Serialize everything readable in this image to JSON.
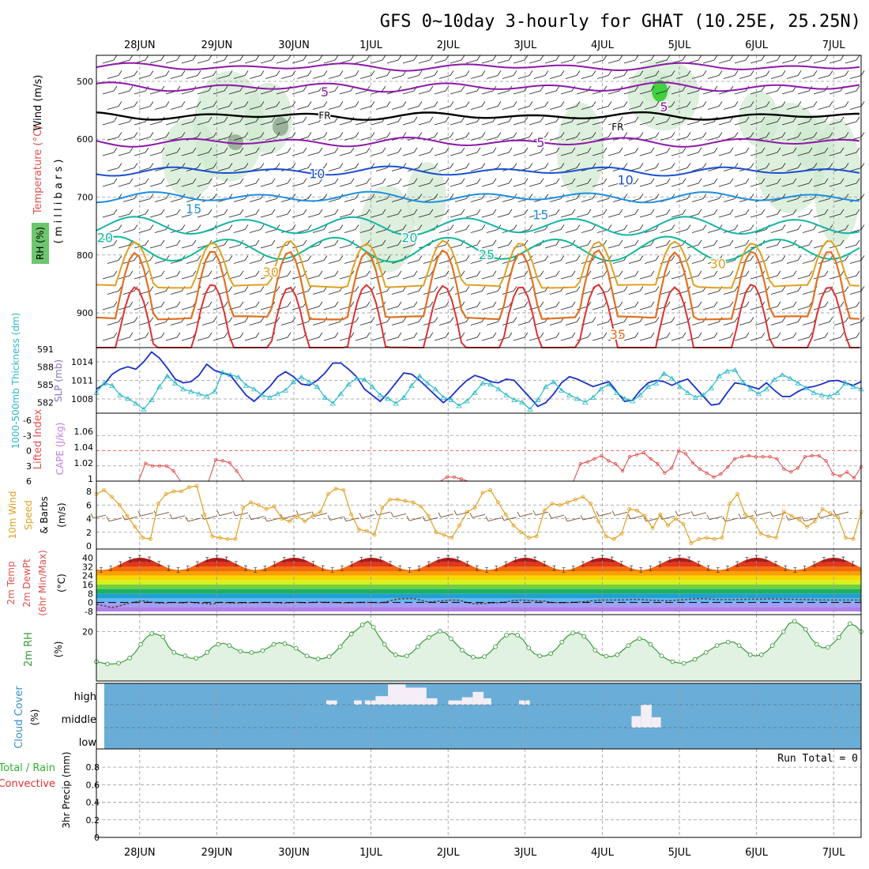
{
  "chart_data": {
    "type": "meteogram",
    "title": "GFS 0~10day 3-hourly for GHAT (10.25E, 25.25N)",
    "date_labels": [
      "28JUN",
      "29JUN",
      "30JUN",
      "1JUL",
      "2JUL",
      "3JUL",
      "4JUL",
      "5JUL",
      "6JUL",
      "7JUL"
    ],
    "upper": {
      "ylabel_unit": "( m i l l i b a r s )",
      "side_labels": {
        "wind": "Wind (m/s)",
        "temp": "Temperature (°C)",
        "rh": "RH (%)"
      },
      "yticks": [
        500,
        600,
        700,
        800,
        900
      ],
      "ylim": [
        960,
        455
      ],
      "isotherm_labels": [
        {
          "text": "5",
          "day": 2.9,
          "p": 526,
          "kind": "cold"
        },
        {
          "text": "5",
          "day": 7.3,
          "p": 552,
          "kind": "cold"
        },
        {
          "text": "5",
          "day": 5.7,
          "p": 613,
          "kind": "cold"
        },
        {
          "text": "FR",
          "day": 2.9,
          "p": 565,
          "kind": "fr"
        },
        {
          "text": "FR",
          "day": 6.7,
          "p": 585,
          "kind": "fr"
        },
        {
          "text": "10",
          "day": 2.8,
          "p": 667,
          "kind": "c10"
        },
        {
          "text": "10",
          "day": 6.8,
          "p": 678,
          "kind": "c10"
        },
        {
          "text": "15",
          "day": 1.2,
          "p": 728,
          "kind": "c15"
        },
        {
          "text": "15",
          "day": 5.7,
          "p": 738,
          "kind": "c15"
        },
        {
          "text": "20",
          "day": 0.05,
          "p": 778,
          "kind": "c20"
        },
        {
          "text": "20",
          "day": 4.0,
          "p": 778,
          "kind": "c20"
        },
        {
          "text": "25",
          "day": 5.0,
          "p": 807,
          "kind": "c25"
        },
        {
          "text": "30",
          "day": 2.2,
          "p": 837,
          "kind": "c30"
        },
        {
          "text": "30",
          "day": 8.0,
          "p": 823,
          "kind": "c30"
        },
        {
          "text": "35",
          "day": 6.7,
          "p": 945,
          "kind": "c35"
        }
      ]
    },
    "slp_panel": {
      "left_label": "1000-500mb Thickness (dm)",
      "right_label": "SLP (mb)",
      "left_ticks": [
        "591",
        "588",
        "585",
        "582"
      ],
      "right_ticks": [
        "1014",
        "1011",
        "1008"
      ],
      "slp": [
        1009.6,
        1010.4,
        1012.0,
        1012.8,
        1013.2,
        1012.8,
        1014.0,
        1015.6,
        1014.6,
        1013.0,
        1011.2,
        1010.6,
        1010.8,
        1011.8,
        1013.6,
        1012.6,
        1012.2,
        1011.8,
        1010.2,
        1008.6,
        1007.6,
        1008.8,
        1010.0,
        1011.6,
        1012.4,
        1011.6,
        1010.4,
        1010.2,
        1011.0,
        1012.2,
        1013.8,
        1013.8,
        1012.8,
        1011.6,
        1009.6,
        1008.6,
        1007.6,
        1009.0,
        1010.6,
        1012.2,
        1012.0,
        1011.0,
        1009.8,
        1008.6,
        1007.4,
        1008.4,
        1009.8,
        1011.0,
        1011.8,
        1011.4,
        1010.8,
        1010.6,
        1011.2,
        1011.0,
        1009.6,
        1008.2,
        1006.8,
        1007.4,
        1008.8,
        1010.6,
        1011.6,
        1011.2,
        1010.6,
        1010.0,
        1010.4,
        1010.8,
        1009.2,
        1007.6,
        1007.8,
        1009.4,
        1010.6,
        1011.0,
        1010.8,
        1010.2,
        1010.8,
        1011.2,
        1009.8,
        1008.4,
        1007.0,
        1007.2,
        1009.0,
        1010.6,
        1010.4,
        1010.0,
        1009.6,
        1010.6,
        1009.4,
        1008.4,
        1008.4,
        1009.2,
        1009.8,
        1010.0,
        1010.4,
        1010.9,
        1011.0,
        1010.6,
        1010.2,
        1010.8
      ],
      "thickness": [
        584.0,
        585.6,
        585.2,
        583.6,
        583.0,
        582.2,
        581.2,
        582.8,
        585.0,
        586.8,
        585.6,
        584.6,
        584.2,
        583.8,
        583.4,
        584.2,
        587.4,
        587.0,
        586.6,
        585.2,
        584.6,
        583.6,
        583.2,
        583.8,
        584.4,
        585.8,
        586.6,
        585.8,
        585.0,
        583.2,
        582.2,
        583.8,
        585.4,
        586.4,
        586.2,
        585.0,
        583.6,
        583.0,
        582.2,
        583.2,
        585.2,
        586.8,
        585.6,
        584.6,
        583.2,
        582.8,
        581.8,
        582.6,
        584.0,
        585.6,
        585.4,
        584.6,
        583.6,
        582.8,
        582.4,
        581.2,
        582.8,
        585.0,
        585.8,
        584.4,
        583.6,
        583.0,
        582.4,
        583.2,
        584.6,
        585.4,
        584.0,
        583.0,
        582.6,
        583.6,
        585.0,
        585.6,
        587.2,
        586.4,
        585.0,
        584.0,
        583.2,
        583.6,
        584.8,
        586.8,
        587.6,
        587.8,
        585.8,
        584.6,
        583.8,
        584.6,
        586.2,
        587.0,
        586.4,
        585.6,
        584.8,
        584.0,
        583.6,
        583.4,
        584.0,
        585.6,
        585.0,
        584.6
      ]
    },
    "cape_panel": {
      "left_label": "Lifted Index",
      "right_label": "CAPE (J/kg)",
      "left_ticks": [
        "-6",
        "-3",
        "0",
        "3",
        "6"
      ],
      "right_ticks": [
        "1.06",
        "1.04",
        "1.02",
        "1"
      ],
      "li": [
        6,
        6,
        6,
        6,
        6,
        6,
        6,
        2.5,
        3.0,
        3.0,
        3.0,
        4.0,
        6,
        6,
        6,
        6,
        6,
        1.8,
        2.0,
        2.4,
        4.0,
        6,
        6,
        6,
        6,
        6,
        6,
        6,
        6,
        6,
        6,
        6,
        6,
        6,
        6,
        6,
        6,
        6,
        6,
        6,
        6,
        6,
        6,
        6,
        6,
        6,
        6,
        6,
        6,
        6,
        5.2,
        5.2,
        5.6,
        6,
        6,
        6,
        6,
        6,
        6,
        6,
        6,
        6,
        6,
        6,
        6,
        6,
        6,
        6,
        6,
        2.6,
        2.2,
        1.6,
        1.0,
        2.0,
        2.6,
        4.0,
        1.2,
        0.8,
        0.4,
        1.6,
        2.6,
        4.4,
        3.4,
        0.0,
        0.6,
        2.4,
        3.6,
        4.4,
        5.2,
        4.6,
        3.2,
        1.6,
        1.2,
        1.0,
        1.2,
        1.2,
        1.2,
        1.6,
        3.6,
        4.2,
        3.4,
        1.2,
        1.0,
        1.0,
        2.0,
        4.6,
        5.0,
        4.2,
        5.4,
        3.2
      ]
    },
    "wind_panel": {
      "left_label": "10m Wind Speed & Barbs (m/s)",
      "yticks": [
        "0",
        "2",
        "4",
        "6",
        "8"
      ],
      "speed": [
        7.6,
        8.2,
        7.2,
        6.0,
        4.4,
        2.8,
        1.2,
        1.0,
        6.2,
        7.6,
        8.0,
        8.0,
        8.6,
        8.8,
        4.6,
        1.4,
        1.2,
        1.0,
        1.0,
        5.6,
        6.4,
        6.0,
        5.4,
        5.8,
        4.0,
        3.6,
        4.4,
        3.6,
        4.4,
        5.0,
        7.6,
        8.4,
        8.2,
        4.6,
        2.4,
        2.2,
        1.6,
        5.6,
        6.8,
        6.8,
        6.6,
        6.4,
        5.8,
        4.4,
        2.0,
        1.6,
        1.2,
        3.0,
        5.0,
        5.6,
        7.8,
        8.2,
        6.4,
        4.6,
        3.0,
        2.0,
        1.2,
        1.4,
        5.2,
        6.2,
        6.0,
        6.4,
        6.8,
        7.2,
        6.2,
        3.6,
        1.4,
        1.0,
        1.8,
        5.4,
        5.2,
        4.4,
        2.6,
        4.6,
        3.0,
        4.0,
        3.2,
        0.4,
        1.0,
        1.2,
        1.0,
        1.2,
        6.2,
        7.6,
        4.6,
        4.0,
        1.8,
        1.4,
        1.2,
        5.0,
        4.4,
        3.8,
        2.8,
        3.6,
        5.4,
        4.8,
        4.2,
        1.2,
        1.0,
        5.0
      ]
    },
    "temp_panel": {
      "left_label": "2m Temp 2m DewPt (6hr Min/Max) (°C)",
      "yticks": [
        "40",
        "32",
        "24",
        "16",
        "8",
        "0",
        "-8"
      ],
      "temp_min": 29,
      "temp_max": 40,
      "dewpt": [
        -1.5,
        -3.0,
        -4.5,
        -3.0,
        -1.0,
        0.5,
        1.5,
        0.5,
        -0.5,
        -0.5,
        0.2,
        -0.5,
        0.5,
        -0.5,
        -0.8,
        -1.5,
        0.2,
        -0.4,
        -0.5,
        -0.4,
        -0.3,
        -0.1,
        0.2,
        0.0,
        -0.5,
        -0.2,
        0.2,
        -0.3,
        0.2,
        0.4,
        0.2,
        0.0,
        -0.4,
        -0.4,
        0.2,
        0.1,
        0.0,
        -0.2,
        1.5,
        3.0,
        3.5,
        3.6,
        2.0,
        0.4,
        1.0,
        1.5,
        2.2,
        2.0,
        0.0,
        -1.2,
        -1.0,
        -0.6,
        -0.2,
        0.5,
        1.8,
        2.2,
        1.8,
        1.4,
        1.2,
        0.0,
        -0.2,
        -0.1,
        0.3,
        0.6,
        1.4,
        2.1,
        2.2,
        2.2,
        2.3,
        2.5,
        2.8,
        2.4,
        2.0,
        1.8,
        1.6,
        2.0,
        2.5,
        3.0,
        3.5,
        3.2,
        2.8,
        2.6,
        2.6,
        2.6,
        2.8,
        3.0,
        3.0,
        3.2,
        3.1,
        3.0,
        2.9,
        2.7,
        2.5,
        2.4,
        2.3,
        2.2,
        2.2,
        2.2,
        2.2,
        2.2
      ]
    },
    "rh_panel": {
      "left_label": "2m RH (%)",
      "yticks": [
        "20"
      ],
      "rh": [
        7,
        6.5,
        6,
        6,
        6.3,
        7.2,
        8.6,
        11,
        14.5,
        17.5,
        19.2,
        18.8,
        17.8,
        13.5,
        11,
        10,
        9.5,
        8.5,
        8.5,
        9.2,
        11,
        13.5,
        14.5,
        15,
        14,
        12.5,
        11.5,
        11,
        11,
        11,
        11.8,
        13,
        14.5,
        15.2,
        14.8,
        14,
        12.8,
        11,
        9.5,
        8.6,
        8.2,
        8.4,
        9.2,
        11,
        13.5,
        16.5,
        19,
        20.8,
        23,
        24.5,
        22,
        18,
        14.5,
        11.5,
        10,
        9.4,
        9.5,
        11,
        13.5,
        16,
        17.5,
        18.8,
        20.2,
        19.5,
        17,
        14.5,
        12,
        10,
        9,
        8.5,
        9.2,
        11,
        13.5,
        16.5,
        18.5,
        19.2,
        18.5,
        16.5,
        13,
        10.5,
        9.5,
        9.5,
        10.5,
        12.5,
        15.5,
        18,
        19.5,
        19.5,
        18,
        15.5,
        12,
        10,
        9.4,
        9.2,
        10,
        12,
        14,
        16,
        17,
        16.5,
        14.5,
        12,
        9.5,
        8,
        7,
        6.5,
        6.3,
        7,
        8,
        9.5,
        11,
        12.5,
        14,
        15,
        15.5,
        15.5,
        14,
        12,
        10,
        9.5,
        10,
        11.5,
        14,
        17,
        20,
        23.5,
        24.5,
        23,
        21,
        17,
        14.5,
        13,
        13.2,
        15,
        17.5,
        21,
        23.5,
        22.5,
        20
      ]
    },
    "cloud_panel": {
      "left_label": "Cloud Cover (%)",
      "levels": [
        "high",
        "middle",
        "low"
      ],
      "cloud": [
        {
          "level": "high",
          "start": 2.92,
          "end": 3.06,
          "frac": 0.2
        },
        {
          "level": "high",
          "start": 3.28,
          "end": 3.38,
          "frac": 0.2
        },
        {
          "level": "high",
          "start": 3.42,
          "end": 3.56,
          "frac": 0.2
        },
        {
          "level": "high",
          "start": 3.56,
          "end": 3.72,
          "frac": 0.4
        },
        {
          "level": "high",
          "start": 3.72,
          "end": 3.95,
          "frac": 0.95
        },
        {
          "level": "high",
          "start": 3.95,
          "end": 4.22,
          "frac": 0.8
        },
        {
          "level": "high",
          "start": 4.22,
          "end": 4.36,
          "frac": 0.3
        },
        {
          "level": "high",
          "start": 4.5,
          "end": 4.68,
          "frac": 0.2
        },
        {
          "level": "high",
          "start": 4.68,
          "end": 4.82,
          "frac": 0.35
        },
        {
          "level": "high",
          "start": 4.82,
          "end": 4.96,
          "frac": 0.6
        },
        {
          "level": "high",
          "start": 4.96,
          "end": 5.06,
          "frac": 0.3
        },
        {
          "level": "high",
          "start": 5.42,
          "end": 5.56,
          "frac": 0.2
        },
        {
          "level": "middle",
          "start": 6.88,
          "end": 7.0,
          "frac": 0.5
        },
        {
          "level": "middle",
          "start": 7.0,
          "end": 7.14,
          "frac": 1.0
        },
        {
          "level": "middle",
          "start": 7.14,
          "end": 7.26,
          "frac": 0.45
        }
      ]
    },
    "precip_panel": {
      "left_label_1": "Total / Rain",
      "left_label_2": "Convective",
      "left_label_3": "3hr Precip (mm)",
      "yticks": [
        "0",
        "0.2",
        "0.4",
        "0.6",
        "0.8"
      ],
      "run_total": "Run Total = 0"
    },
    "colors": {
      "cold": "#8c18a8",
      "fr": "#000000",
      "c10": "#1a4fd0",
      "c15": "#1e8ee0",
      "c20": "#14b4a8",
      "c25": "#10b898",
      "c30": "#e0a020",
      "c35": "#e07020",
      "c40": "#e03030",
      "slp": "#1a30c8",
      "thickness": "#2ab8c8",
      "cape": "#e04040",
      "wind": "#e0a020",
      "rh": "#3a9a3a",
      "cloud_bg": "#6aaed8"
    }
  }
}
